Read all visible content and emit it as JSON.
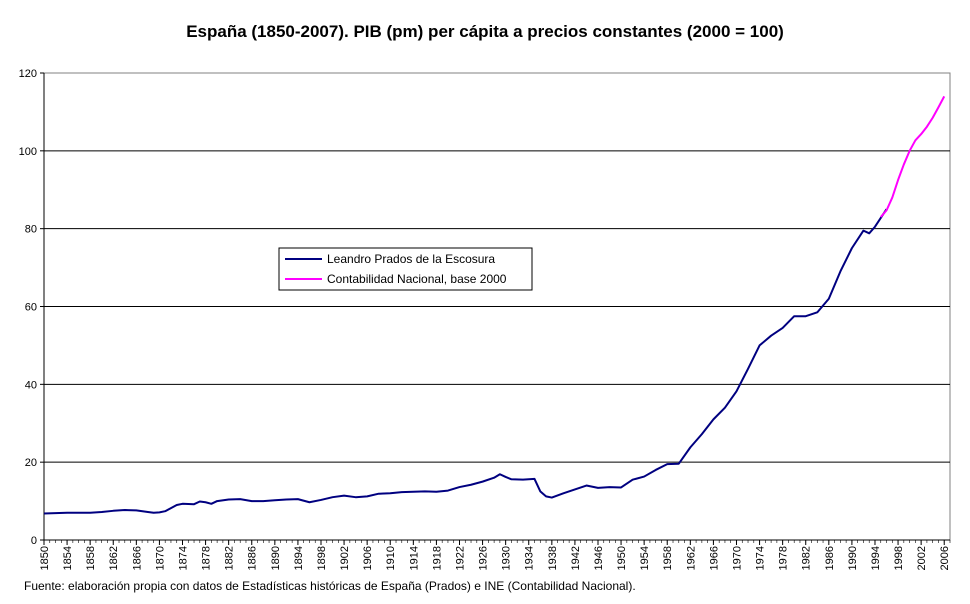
{
  "chart_data": {
    "type": "line",
    "title": "España (1850-2007). PIB (pm) per cápita a precios constantes (2000 = 100)",
    "source": "Fuente: elaboración propia con datos de Estadísticas históricas de España (Prados) e INE (Contabilidad Nacional).",
    "xlabel": "",
    "ylabel": "",
    "xlim": [
      1850,
      2007
    ],
    "ylim": [
      0,
      120
    ],
    "y_ticks": [
      0,
      20,
      40,
      60,
      80,
      100,
      120
    ],
    "x_ticks": [
      1850,
      1854,
      1858,
      1862,
      1866,
      1870,
      1874,
      1878,
      1882,
      1886,
      1890,
      1894,
      1898,
      1902,
      1906,
      1910,
      1914,
      1918,
      1922,
      1926,
      1930,
      1934,
      1938,
      1942,
      1946,
      1950,
      1954,
      1958,
      1962,
      1966,
      1970,
      1974,
      1978,
      1982,
      1986,
      1990,
      1994,
      1998,
      2002,
      2006
    ],
    "grid": "horizontal",
    "legend_position": "center-left",
    "series": [
      {
        "name": "Leandro Prados de la Escosura",
        "color": "#000080",
        "points": [
          [
            1850,
            6.8
          ],
          [
            1852,
            6.9
          ],
          [
            1854,
            7.0
          ],
          [
            1856,
            7.0
          ],
          [
            1858,
            7.0
          ],
          [
            1860,
            7.2
          ],
          [
            1862,
            7.5
          ],
          [
            1864,
            7.7
          ],
          [
            1866,
            7.6
          ],
          [
            1868,
            7.2
          ],
          [
            1869,
            7.0
          ],
          [
            1870,
            7.1
          ],
          [
            1871,
            7.4
          ],
          [
            1872,
            8.2
          ],
          [
            1873,
            9.0
          ],
          [
            1874,
            9.3
          ],
          [
            1876,
            9.2
          ],
          [
            1877,
            9.9
          ],
          [
            1878,
            9.7
          ],
          [
            1879,
            9.3
          ],
          [
            1880,
            10.0
          ],
          [
            1882,
            10.4
          ],
          [
            1884,
            10.5
          ],
          [
            1886,
            10.0
          ],
          [
            1888,
            10.0
          ],
          [
            1890,
            10.2
          ],
          [
            1892,
            10.4
          ],
          [
            1894,
            10.5
          ],
          [
            1896,
            9.7
          ],
          [
            1898,
            10.3
          ],
          [
            1900,
            11.0
          ],
          [
            1902,
            11.4
          ],
          [
            1904,
            11.0
          ],
          [
            1906,
            11.2
          ],
          [
            1908,
            11.9
          ],
          [
            1910,
            12.0
          ],
          [
            1912,
            12.3
          ],
          [
            1914,
            12.4
          ],
          [
            1916,
            12.5
          ],
          [
            1918,
            12.4
          ],
          [
            1920,
            12.7
          ],
          [
            1922,
            13.6
          ],
          [
            1924,
            14.2
          ],
          [
            1926,
            15.0
          ],
          [
            1928,
            16.0
          ],
          [
            1929,
            16.9
          ],
          [
            1930,
            16.2
          ],
          [
            1931,
            15.6
          ],
          [
            1933,
            15.5
          ],
          [
            1935,
            15.7
          ],
          [
            1936,
            12.5
          ],
          [
            1937,
            11.2
          ],
          [
            1938,
            10.9
          ],
          [
            1940,
            12.0
          ],
          [
            1942,
            13.0
          ],
          [
            1944,
            14.0
          ],
          [
            1946,
            13.4
          ],
          [
            1948,
            13.6
          ],
          [
            1950,
            13.5
          ],
          [
            1952,
            15.5
          ],
          [
            1954,
            16.3
          ],
          [
            1956,
            18.0
          ],
          [
            1958,
            19.5
          ],
          [
            1960,
            19.6
          ],
          [
            1962,
            23.8
          ],
          [
            1964,
            27.2
          ],
          [
            1966,
            31.0
          ],
          [
            1968,
            34.0
          ],
          [
            1970,
            38.2
          ],
          [
            1972,
            44.0
          ],
          [
            1974,
            50.0
          ],
          [
            1976,
            52.5
          ],
          [
            1978,
            54.5
          ],
          [
            1980,
            57.5
          ],
          [
            1982,
            57.5
          ],
          [
            1984,
            58.5
          ],
          [
            1986,
            62.0
          ],
          [
            1988,
            69.0
          ],
          [
            1990,
            75.0
          ],
          [
            1992,
            79.5
          ],
          [
            1993,
            78.8
          ],
          [
            1994,
            80.5
          ],
          [
            1996,
            85.0
          ]
        ]
      },
      {
        "name": "Contabilidad Nacional, base 2000",
        "color": "#ff00ff",
        "points": [
          [
            1995,
            83.0
          ],
          [
            1996,
            84.7
          ],
          [
            1997,
            88.0
          ],
          [
            1998,
            92.5
          ],
          [
            1999,
            96.5
          ],
          [
            2000,
            100.0
          ],
          [
            2001,
            102.7
          ],
          [
            2002,
            104.3
          ],
          [
            2003,
            106.2
          ],
          [
            2004,
            108.5
          ],
          [
            2005,
            111.2
          ],
          [
            2006,
            114.0
          ]
        ]
      }
    ]
  }
}
